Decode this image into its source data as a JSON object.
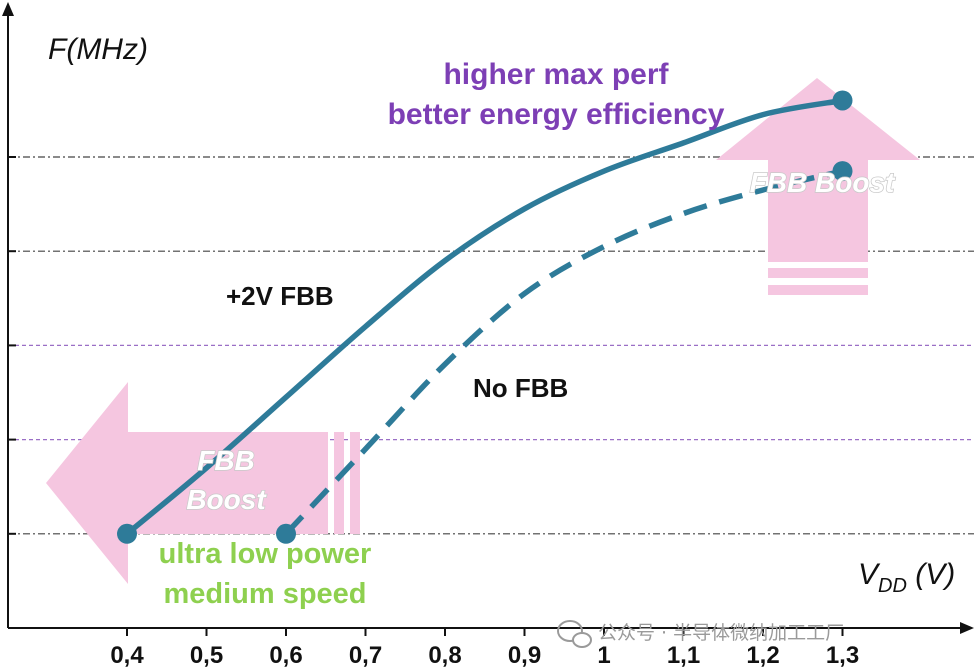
{
  "chart_data": {
    "type": "line",
    "x": [
      0.4,
      0.5,
      0.6,
      0.7,
      0.8,
      0.9,
      1.0,
      1.1,
      1.2,
      1.3
    ],
    "x_tick_labels": [
      "0,4",
      "0,5",
      "0,6",
      "0,7",
      "0,8",
      "0,9",
      "1",
      "1,1",
      "1,2",
      "1,3"
    ],
    "xlabel_main": "V",
    "xlabel_sub": "DD",
    "xlabel_unit": " (V)",
    "ylabel": "F(MHz)",
    "series": [
      {
        "name": "+2V FBB",
        "style": "solid",
        "x": [
          0.4,
          0.5,
          0.6,
          0.7,
          0.8,
          0.9,
          1.0,
          1.1,
          1.2,
          1.3
        ],
        "y": [
          1.0,
          1.7,
          2.45,
          3.2,
          3.9,
          4.45,
          4.85,
          5.15,
          5.45,
          5.6
        ],
        "endpoints": [
          0.4,
          1.3
        ]
      },
      {
        "name": "No FBB",
        "style": "dashed",
        "x": [
          0.6,
          0.7,
          0.8,
          0.9,
          1.0,
          1.1,
          1.2,
          1.3
        ],
        "y": [
          1.0,
          1.9,
          2.8,
          3.55,
          4.05,
          4.4,
          4.65,
          4.85
        ],
        "endpoints": [
          0.6,
          1.3
        ]
      }
    ],
    "gridlines_y": [
      1.0,
      2.0,
      3.0,
      4.0,
      5.0
    ],
    "ylim": [
      0,
      6.3
    ],
    "annotations": {
      "top_right_line1": "higher max perf",
      "top_right_line2": "better energy efficiency",
      "bottom_left_line1": "ultra low power",
      "bottom_left_line2": "medium speed",
      "boost_right": "FBB Boost",
      "boost_left_line1": "FBB",
      "boost_left_line2": "Boost"
    }
  },
  "colors": {
    "series": "#2e7b99",
    "arrow": "#f5c6e0",
    "purple_text": "#7d3fb5",
    "green_text": "#8ed04f",
    "grid_dark": "#444444",
    "grid_purple": "#9a6fc6",
    "axis": "#111111"
  },
  "watermark": "公众号 · 半导体微纳加工工厂"
}
